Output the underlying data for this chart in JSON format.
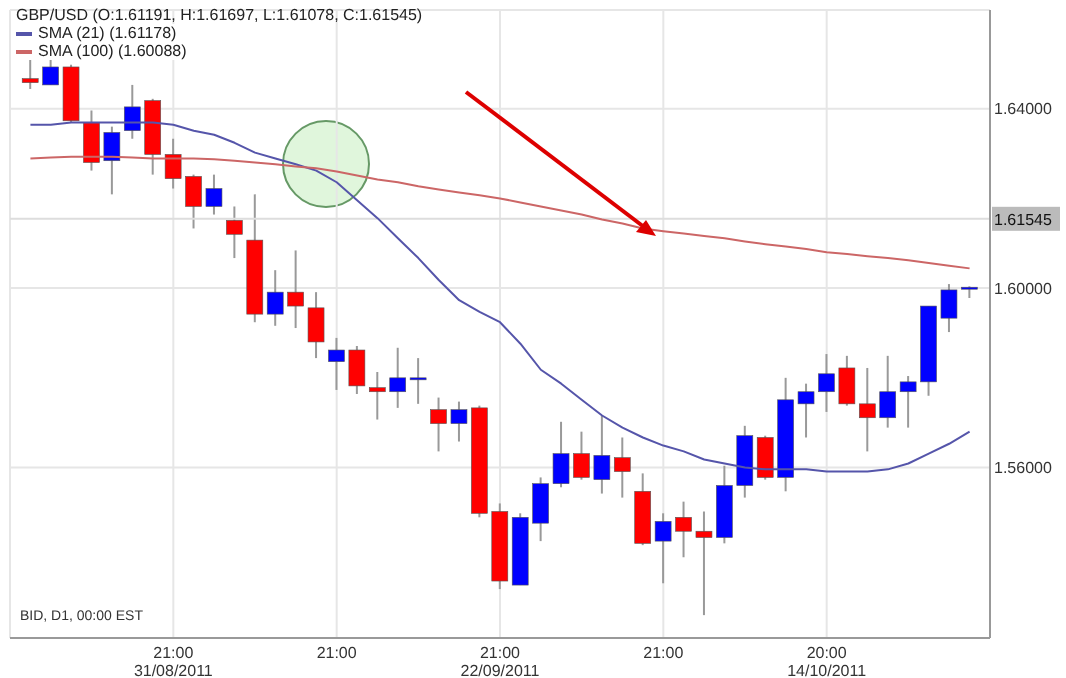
{
  "chart_data": {
    "type": "candlestick",
    "title": "GBP/USD (O:1.61191, H:1.61697, L:1.61078, C:1.61545)",
    "categories": [
      null,
      null,
      null,
      null,
      null,
      null,
      null,
      "21:00\n31/08/2011",
      null,
      null,
      null,
      null,
      null,
      null,
      null,
      "21:00",
      null,
      null,
      null,
      null,
      null,
      null,
      null,
      "21:00\n22/09/2011",
      null,
      null,
      null,
      null,
      null,
      null,
      null,
      "21:00",
      null,
      null,
      null,
      null,
      null,
      null,
      null,
      "20:00\n14/10/2011",
      null,
      null,
      null,
      null,
      null,
      null,
      null
    ],
    "ohlc": [
      [
        1.6467,
        1.6511,
        1.6444,
        1.6458
      ],
      [
        1.6453,
        1.652,
        1.6453,
        1.6493
      ],
      [
        1.6493,
        1.6498,
        1.6369,
        1.6373
      ],
      [
        1.6369,
        1.6396,
        1.6262,
        1.628
      ],
      [
        1.6284,
        1.636,
        1.6209,
        1.6347
      ],
      [
        1.6351,
        1.6453,
        1.6333,
        1.6404
      ],
      [
        1.6418,
        1.6422,
        1.6253,
        1.6298
      ],
      [
        1.6298,
        1.6333,
        1.6222,
        1.6244
      ],
      [
        1.6249,
        1.6253,
        1.6133,
        1.6182
      ],
      [
        1.6182,
        1.6253,
        1.6164,
        1.6222
      ],
      [
        1.6151,
        1.6182,
        1.6067,
        1.612
      ],
      [
        1.6107,
        1.6209,
        1.5924,
        1.5942
      ],
      [
        1.5942,
        1.604,
        1.5916,
        1.5991
      ],
      [
        1.5991,
        1.6084,
        1.5911,
        1.596
      ],
      [
        1.5956,
        1.5991,
        1.5844,
        1.588
      ],
      [
        1.5836,
        1.5889,
        1.5773,
        1.5862
      ],
      [
        1.5862,
        1.5871,
        1.5764,
        1.5782
      ],
      [
        1.5778,
        1.5813,
        1.5707,
        1.5769
      ],
      [
        1.5769,
        1.5867,
        1.5733,
        1.58
      ],
      [
        1.5798,
        1.5844,
        1.5742,
        1.58
      ],
      [
        1.5729,
        1.5756,
        1.5636,
        1.5698
      ],
      [
        1.5698,
        1.5747,
        1.5658,
        1.5729
      ],
      [
        1.5733,
        1.5738,
        1.5489,
        1.5498
      ],
      [
        1.5502,
        1.552,
        1.5329,
        1.5347
      ],
      [
        1.5338,
        1.5498,
        1.5338,
        1.5489
      ],
      [
        1.5476,
        1.5578,
        1.5436,
        1.5564
      ],
      [
        1.5564,
        1.5702,
        1.5556,
        1.5631
      ],
      [
        1.5631,
        1.568,
        1.5573,
        1.5578
      ],
      [
        1.5573,
        1.5716,
        1.5542,
        1.5627
      ],
      [
        1.5622,
        1.5667,
        1.5533,
        1.5591
      ],
      [
        1.5547,
        1.5587,
        1.5427,
        1.5431
      ],
      [
        1.5436,
        1.5498,
        1.5342,
        1.548
      ],
      [
        1.5489,
        1.5524,
        1.54,
        1.5458
      ],
      [
        1.5458,
        1.5502,
        1.5271,
        1.5444
      ],
      [
        1.5444,
        1.5604,
        1.5431,
        1.556
      ],
      [
        1.556,
        1.5693,
        1.5533,
        1.5671
      ],
      [
        1.5667,
        1.5671,
        1.5573,
        1.5578
      ],
      [
        1.5578,
        1.58,
        1.5547,
        1.5751
      ],
      [
        1.5742,
        1.5787,
        1.5667,
        1.5769
      ],
      [
        1.5769,
        1.5853,
        1.5724,
        1.5809
      ],
      [
        1.5822,
        1.5849,
        1.5738,
        1.5742
      ],
      [
        1.5742,
        1.5822,
        1.5636,
        1.5711
      ],
      [
        1.5711,
        1.5849,
        1.5689,
        1.5769
      ],
      [
        1.5769,
        1.5804,
        1.5689,
        1.5791
      ],
      [
        1.5791,
        1.596,
        1.576,
        1.596
      ],
      [
        1.5933,
        1.6009,
        1.5902,
        1.5996
      ],
      [
        1.6,
        1.6004,
        1.5978,
        1.6002
      ]
    ],
    "colors": [
      "#ff0000",
      "#0000ff",
      "#ff0000",
      "#ff0000",
      "#0000ff",
      "#0000ff",
      "#ff0000",
      "#ff0000",
      "#ff0000",
      "#0000ff",
      "#ff0000",
      "#ff0000",
      "#0000ff",
      "#ff0000",
      "#ff0000",
      "#0000ff",
      "#ff0000",
      "#ff0000",
      "#0000ff",
      "#0000ff",
      "#ff0000",
      "#0000ff",
      "#ff0000",
      "#ff0000",
      "#0000ff",
      "#0000ff",
      "#0000ff",
      "#ff0000",
      "#0000ff",
      "#ff0000",
      "#ff0000",
      "#0000ff",
      "#ff0000",
      "#ff0000",
      "#0000ff",
      "#0000ff",
      "#ff0000",
      "#0000ff",
      "#0000ff",
      "#0000ff",
      "#ff0000",
      "#ff0000",
      "#0000ff",
      "#0000ff",
      "#0000ff",
      "#0000ff",
      "#0000ff"
    ],
    "series": [
      {
        "name": "SMA (21) (1.61178)",
        "type": "line",
        "color": "#5555aa",
        "values": [
          1.6364,
          1.6364,
          1.6369,
          1.6369,
          1.6369,
          1.6369,
          1.6369,
          1.6364,
          1.6351,
          1.6342,
          1.6324,
          1.6302,
          1.6289,
          1.6276,
          1.6262,
          1.6236,
          1.6196,
          1.6156,
          1.6111,
          1.6067,
          1.6018,
          1.5973,
          1.5947,
          1.5924,
          1.5876,
          1.5818,
          1.5787,
          1.5751,
          1.5716,
          1.5689,
          1.5667,
          1.5649,
          1.5636,
          1.5618,
          1.5609,
          1.56,
          1.5596,
          1.5596,
          1.5596,
          1.5591,
          1.5591,
          1.5591,
          1.5596,
          1.5609,
          1.5631,
          1.5653,
          1.568
        ]
      },
      {
        "name": "SMA (100) (1.60088)",
        "type": "line",
        "color": "#cc6666",
        "values": [
          1.6289,
          1.6291,
          1.6293,
          1.6293,
          1.6293,
          1.6291,
          1.6289,
          1.6289,
          1.6289,
          1.6287,
          1.6284,
          1.628,
          1.6276,
          1.6271,
          1.6267,
          1.626,
          1.6251,
          1.6242,
          1.6236,
          1.6227,
          1.622,
          1.6213,
          1.6207,
          1.62,
          1.6191,
          1.6182,
          1.6173,
          1.6164,
          1.6153,
          1.6144,
          1.6133,
          1.6127,
          1.6122,
          1.6116,
          1.6111,
          1.6104,
          1.6098,
          1.6093,
          1.6087,
          1.608,
          1.6076,
          1.6071,
          1.6067,
          1.6062,
          1.6056,
          1.605,
          1.6044
        ]
      }
    ],
    "ylim": [
      1.522,
      1.662
    ],
    "yticks": [
      {
        "value": 1.56,
        "label": "1.56000"
      },
      {
        "value": 1.6,
        "label": "1.60000"
      },
      {
        "value": 1.64,
        "label": "1.64000"
      }
    ],
    "ref_lines": [
      {
        "axis": "y",
        "value": 1.61545,
        "label": "1.61545",
        "color": "#dddddd"
      }
    ],
    "annotations": [
      "BID, D1, 00:00 EST"
    ],
    "grid": true,
    "legend": "top left"
  }
}
